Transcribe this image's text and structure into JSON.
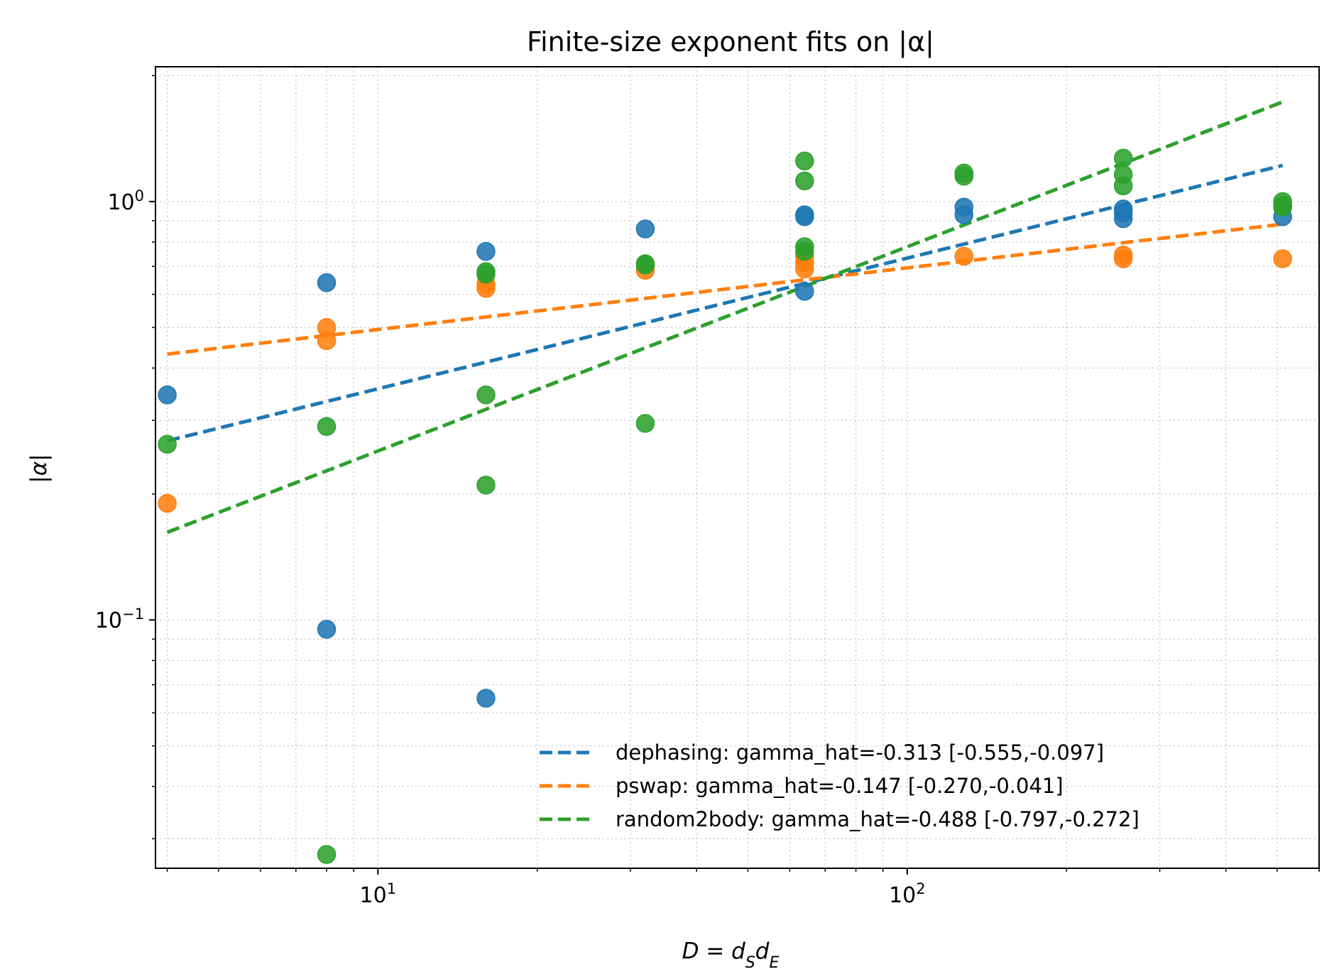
{
  "chart_data": {
    "type": "scatter",
    "title": "Finite-size exponent fits on |α|",
    "xlabel": "D = d_S d_E",
    "ylabel": "|α|",
    "xscale": "log",
    "yscale": "log",
    "xlim": [
      3.8,
      600
    ],
    "ylim": [
      0.0255,
      2.1
    ],
    "grid": true,
    "legend_position": "lower right",
    "x_ticks": [
      {
        "value": 10,
        "base": "10",
        "exp": "1"
      },
      {
        "value": 100,
        "base": "10",
        "exp": "2"
      }
    ],
    "y_ticks": [
      {
        "value": 0.1,
        "base": "10",
        "exp": "−1"
      },
      {
        "value": 1,
        "base": "10",
        "exp": "0"
      }
    ],
    "series": [
      {
        "name": "dephasing",
        "legend_label": "dephasing: gamma_hat=-0.313 [-0.555,-0.097]",
        "color": "#1f77b4",
        "points": [
          [
            4,
            0.345
          ],
          [
            8,
            0.64
          ],
          [
            8,
            0.095
          ],
          [
            16,
            0.76
          ],
          [
            16,
            0.065
          ],
          [
            32,
            0.86
          ],
          [
            64,
            0.93
          ],
          [
            64,
            0.92
          ],
          [
            64,
            0.61
          ],
          [
            128,
            0.97
          ],
          [
            128,
            0.93
          ],
          [
            256,
            0.96
          ],
          [
            256,
            0.94
          ],
          [
            256,
            0.91
          ],
          [
            512,
            0.92
          ]
        ],
        "fit": [
          [
            4,
            0.268
          ],
          [
            512,
            1.22
          ]
        ]
      },
      {
        "name": "pswap",
        "legend_label": "pswap: gamma_hat=-0.147 [-0.270,-0.041]",
        "color": "#ff7f0e",
        "points": [
          [
            4,
            0.19
          ],
          [
            8,
            0.5
          ],
          [
            8,
            0.465
          ],
          [
            16,
            0.635
          ],
          [
            16,
            0.62
          ],
          [
            32,
            0.685
          ],
          [
            64,
            0.74
          ],
          [
            64,
            0.715
          ],
          [
            64,
            0.69
          ],
          [
            128,
            0.74
          ],
          [
            256,
            0.745
          ],
          [
            256,
            0.73
          ],
          [
            512,
            0.73
          ]
        ],
        "fit": [
          [
            4,
            0.432
          ],
          [
            512,
            0.883
          ]
        ]
      },
      {
        "name": "random2body",
        "legend_label": "random2body: gamma_hat=-0.488 [-0.797,-0.272]",
        "color": "#2ca02c",
        "points": [
          [
            4,
            0.263
          ],
          [
            8,
            0.29
          ],
          [
            8,
            0.0275
          ],
          [
            16,
            0.68
          ],
          [
            16,
            0.67
          ],
          [
            16,
            0.345
          ],
          [
            16,
            0.21
          ],
          [
            32,
            0.71
          ],
          [
            32,
            0.705
          ],
          [
            32,
            0.295
          ],
          [
            64,
            1.25
          ],
          [
            64,
            1.12
          ],
          [
            64,
            0.78
          ],
          [
            64,
            0.76
          ],
          [
            128,
            1.17
          ],
          [
            128,
            1.15
          ],
          [
            256,
            1.27
          ],
          [
            256,
            1.16
          ],
          [
            256,
            1.09
          ],
          [
            512,
            1.0
          ],
          [
            512,
            0.98
          ],
          [
            512,
            0.97
          ]
        ],
        "fit": [
          [
            4,
            0.162
          ],
          [
            512,
            1.73
          ]
        ]
      }
    ]
  }
}
